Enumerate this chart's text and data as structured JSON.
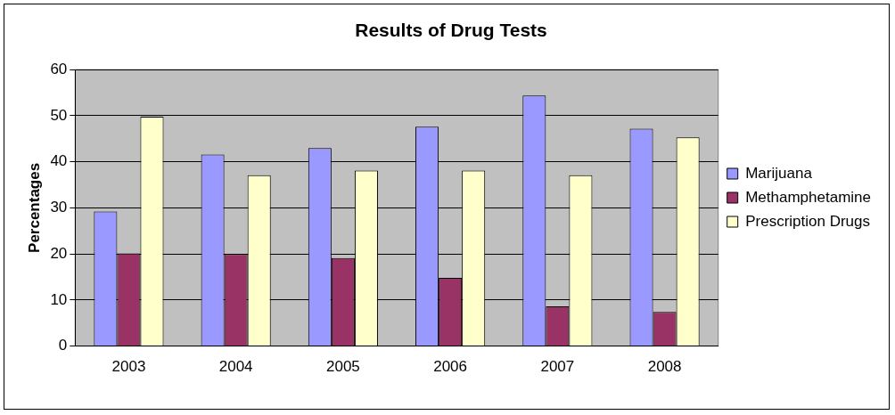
{
  "chart_data": {
    "type": "bar",
    "title": "Results of Drug Tests",
    "ylabel": "Percentages",
    "categories": [
      "2003",
      "2004",
      "2005",
      "2006",
      "2007",
      "2008"
    ],
    "series": [
      {
        "name": "Marijuana",
        "color": "#9999ff",
        "values": [
          29.2,
          41.6,
          43.0,
          47.6,
          54.4,
          47.2
        ]
      },
      {
        "name": "Methamphetamine",
        "color": "#993366",
        "values": [
          20.1,
          20.0,
          19.1,
          14.8,
          8.6,
          7.4
        ]
      },
      {
        "name": "Prescription Drugs",
        "color": "#ffffcc",
        "values": [
          49.8,
          37.1,
          38.1,
          38.1,
          37.1,
          45.3
        ]
      }
    ],
    "ylim": [
      0,
      60
    ],
    "yticks": [
      0,
      10,
      20,
      30,
      40,
      50,
      60
    ],
    "grid": "y",
    "legend": "right"
  }
}
